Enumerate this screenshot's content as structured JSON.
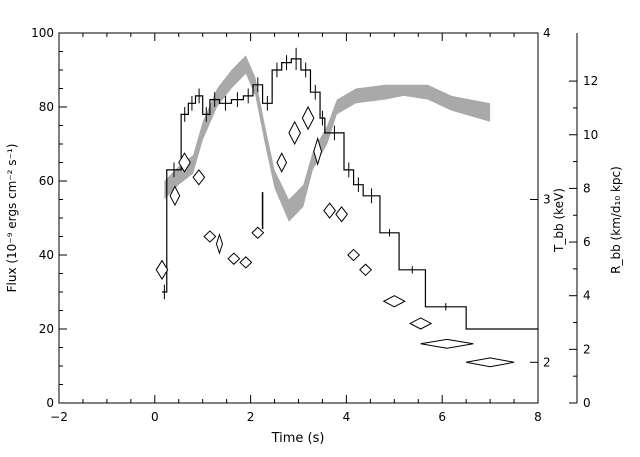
{
  "chart_data": {
    "type": "line",
    "xlabel": "Time (s)",
    "ylabel_left": "Flux (10⁻⁹ ergs cm⁻² s⁻¹)",
    "ylabel_mid": "T_bb (keV)",
    "ylabel_right": "R_bb (km/d₁₀ kpc)",
    "xlim": [
      -2,
      8
    ],
    "ylim_left": [
      0,
      100
    ],
    "x_ticks": [
      -2,
      0,
      2,
      4,
      6,
      8
    ],
    "x_tick_labels": [
      "−2",
      "0",
      "2",
      "4",
      "6",
      "8"
    ],
    "y_left_ticks": [
      0,
      20,
      40,
      60,
      80,
      100
    ],
    "y_left_tick_labels": [
      "0",
      "20",
      "40",
      "60",
      "80",
      "100"
    ],
    "y_mid_ticks": [
      {
        "label": "2",
        "flux": 11
      },
      {
        "label": "3",
        "flux": 55
      },
      {
        "label": "4",
        "flux": 100
      }
    ],
    "y_right_ticks": [
      {
        "label": "0",
        "flux": 0
      },
      {
        "label": "2",
        "flux": 14.5
      },
      {
        "label": "4",
        "flux": 29
      },
      {
        "label": "6",
        "flux": 43.5
      },
      {
        "label": "8",
        "flux": 58
      },
      {
        "label": "10",
        "flux": 72.5
      },
      {
        "label": "12",
        "flux": 87
      }
    ],
    "series": [
      {
        "style": "histogram-step",
        "color": "#000000",
        "bins": [
          {
            "x0": 0.15,
            "x1": 0.25,
            "y": 30,
            "err": 2
          },
          {
            "x0": 0.25,
            "x1": 0.55,
            "y": 63,
            "err": 2
          },
          {
            "x0": 0.55,
            "x1": 0.7,
            "y": 78,
            "err": 2
          },
          {
            "x0": 0.7,
            "x1": 0.85,
            "y": 81,
            "err": 2
          },
          {
            "x0": 0.85,
            "x1": 1.0,
            "y": 83,
            "err": 2
          },
          {
            "x0": 1.0,
            "x1": 1.15,
            "y": 78,
            "err": 2
          },
          {
            "x0": 1.15,
            "x1": 1.35,
            "y": 82,
            "err": 2
          },
          {
            "x0": 1.35,
            "x1": 1.6,
            "y": 81,
            "err": 2
          },
          {
            "x0": 1.6,
            "x1": 1.85,
            "y": 82,
            "err": 2
          },
          {
            "x0": 1.85,
            "x1": 2.05,
            "y": 83,
            "err": 2
          },
          {
            "x0": 2.05,
            "x1": 2.25,
            "y": 86,
            "err": 2
          },
          {
            "x0": 2.25,
            "x1": 2.45,
            "y": 81,
            "err": 2
          },
          {
            "x0": 2.45,
            "x1": 2.65,
            "y": 90,
            "err": 2
          },
          {
            "x0": 2.65,
            "x1": 2.85,
            "y": 92,
            "err": 2
          },
          {
            "x0": 2.85,
            "x1": 3.05,
            "y": 93,
            "err": 3
          },
          {
            "x0": 3.05,
            "x1": 3.25,
            "y": 90,
            "err": 2
          },
          {
            "x0": 3.25,
            "x1": 3.45,
            "y": 84,
            "err": 2
          },
          {
            "x0": 3.45,
            "x1": 3.55,
            "y": 77,
            "err": 2
          },
          {
            "x0": 3.55,
            "x1": 3.95,
            "y": 73,
            "err": 2
          },
          {
            "x0": 3.95,
            "x1": 4.15,
            "y": 63,
            "err": 2
          },
          {
            "x0": 4.15,
            "x1": 4.35,
            "y": 59,
            "err": 2
          },
          {
            "x0": 4.35,
            "x1": 4.7,
            "y": 56,
            "err": 2
          },
          {
            "x0": 4.7,
            "x1": 5.1,
            "y": 46,
            "err": 1
          },
          {
            "x0": 5.1,
            "x1": 5.65,
            "y": 36,
            "err": 1
          },
          {
            "x0": 5.65,
            "x1": 6.5,
            "y": 26,
            "err": 1
          },
          {
            "x0": 6.5,
            "x1": 8.0,
            "y": 20,
            "err": 0
          }
        ],
        "extra_error_bar": {
          "x": 2.25,
          "y": 52,
          "err": 5
        }
      },
      {
        "style": "diamonds",
        "color": "#000000",
        "points": [
          {
            "x": 0.15,
            "y": 36,
            "dx": 0.12,
            "dy": 2.5
          },
          {
            "x": 0.42,
            "y": 56,
            "dx": 0.1,
            "dy": 2.5
          },
          {
            "x": 0.62,
            "y": 65,
            "dx": 0.12,
            "dy": 2.5
          },
          {
            "x": 0.92,
            "y": 61,
            "dx": 0.12,
            "dy": 2
          },
          {
            "x": 1.15,
            "y": 45,
            "dx": 0.12,
            "dy": 1.5
          },
          {
            "x": 1.35,
            "y": 43,
            "dx": 0.06,
            "dy": 2.5
          },
          {
            "x": 1.65,
            "y": 39,
            "dx": 0.12,
            "dy": 1.5
          },
          {
            "x": 1.9,
            "y": 38,
            "dx": 0.12,
            "dy": 1.5
          },
          {
            "x": 2.15,
            "y": 46,
            "dx": 0.12,
            "dy": 1.5
          },
          {
            "x": 2.65,
            "y": 65,
            "dx": 0.1,
            "dy": 2.5
          },
          {
            "x": 2.92,
            "y": 73,
            "dx": 0.12,
            "dy": 3
          },
          {
            "x": 3.2,
            "y": 77,
            "dx": 0.12,
            "dy": 3
          },
          {
            "x": 3.4,
            "y": 68,
            "dx": 0.08,
            "dy": 3.5
          },
          {
            "x": 3.65,
            "y": 52,
            "dx": 0.12,
            "dy": 2
          },
          {
            "x": 3.9,
            "y": 51,
            "dx": 0.12,
            "dy": 2
          },
          {
            "x": 4.15,
            "y": 40,
            "dx": 0.12,
            "dy": 1.5
          },
          {
            "x": 4.4,
            "y": 36,
            "dx": 0.12,
            "dy": 1.5
          },
          {
            "x": 5.0,
            "y": 27.5,
            "dx": 0.22,
            "dy": 1.5
          },
          {
            "x": 5.55,
            "y": 21.5,
            "dx": 0.22,
            "dy": 1.5
          },
          {
            "x": 6.1,
            "y": 16,
            "dx": 0.55,
            "dy": 1.2
          },
          {
            "x": 7.0,
            "y": 11,
            "dx": 0.5,
            "dy": 1.2
          }
        ]
      },
      {
        "style": "shaded-band",
        "color": "#a9a9a9",
        "points": [
          {
            "x": 0.2,
            "lo": 55,
            "hi": 60
          },
          {
            "x": 0.5,
            "lo": 59,
            "hi": 64
          },
          {
            "x": 0.8,
            "lo": 62,
            "hi": 67
          },
          {
            "x": 1.0,
            "lo": 71,
            "hi": 76
          },
          {
            "x": 1.3,
            "lo": 80,
            "hi": 85
          },
          {
            "x": 1.6,
            "lo": 85,
            "hi": 90
          },
          {
            "x": 1.9,
            "lo": 89,
            "hi": 94
          },
          {
            "x": 2.1,
            "lo": 83,
            "hi": 88
          },
          {
            "x": 2.3,
            "lo": 70,
            "hi": 75
          },
          {
            "x": 2.5,
            "lo": 58,
            "hi": 63
          },
          {
            "x": 2.8,
            "lo": 49,
            "hi": 55
          },
          {
            "x": 3.1,
            "lo": 53,
            "hi": 59
          },
          {
            "x": 3.3,
            "lo": 63,
            "hi": 68
          },
          {
            "x": 3.6,
            "lo": 70,
            "hi": 75
          },
          {
            "x": 3.8,
            "lo": 78,
            "hi": 82
          },
          {
            "x": 4.2,
            "lo": 81,
            "hi": 85
          },
          {
            "x": 4.8,
            "lo": 82,
            "hi": 86
          },
          {
            "x": 5.2,
            "lo": 83,
            "hi": 86
          },
          {
            "x": 5.7,
            "lo": 82,
            "hi": 86
          },
          {
            "x": 6.2,
            "lo": 79,
            "hi": 83
          },
          {
            "x": 7.0,
            "lo": 76,
            "hi": 81
          }
        ]
      }
    ]
  }
}
